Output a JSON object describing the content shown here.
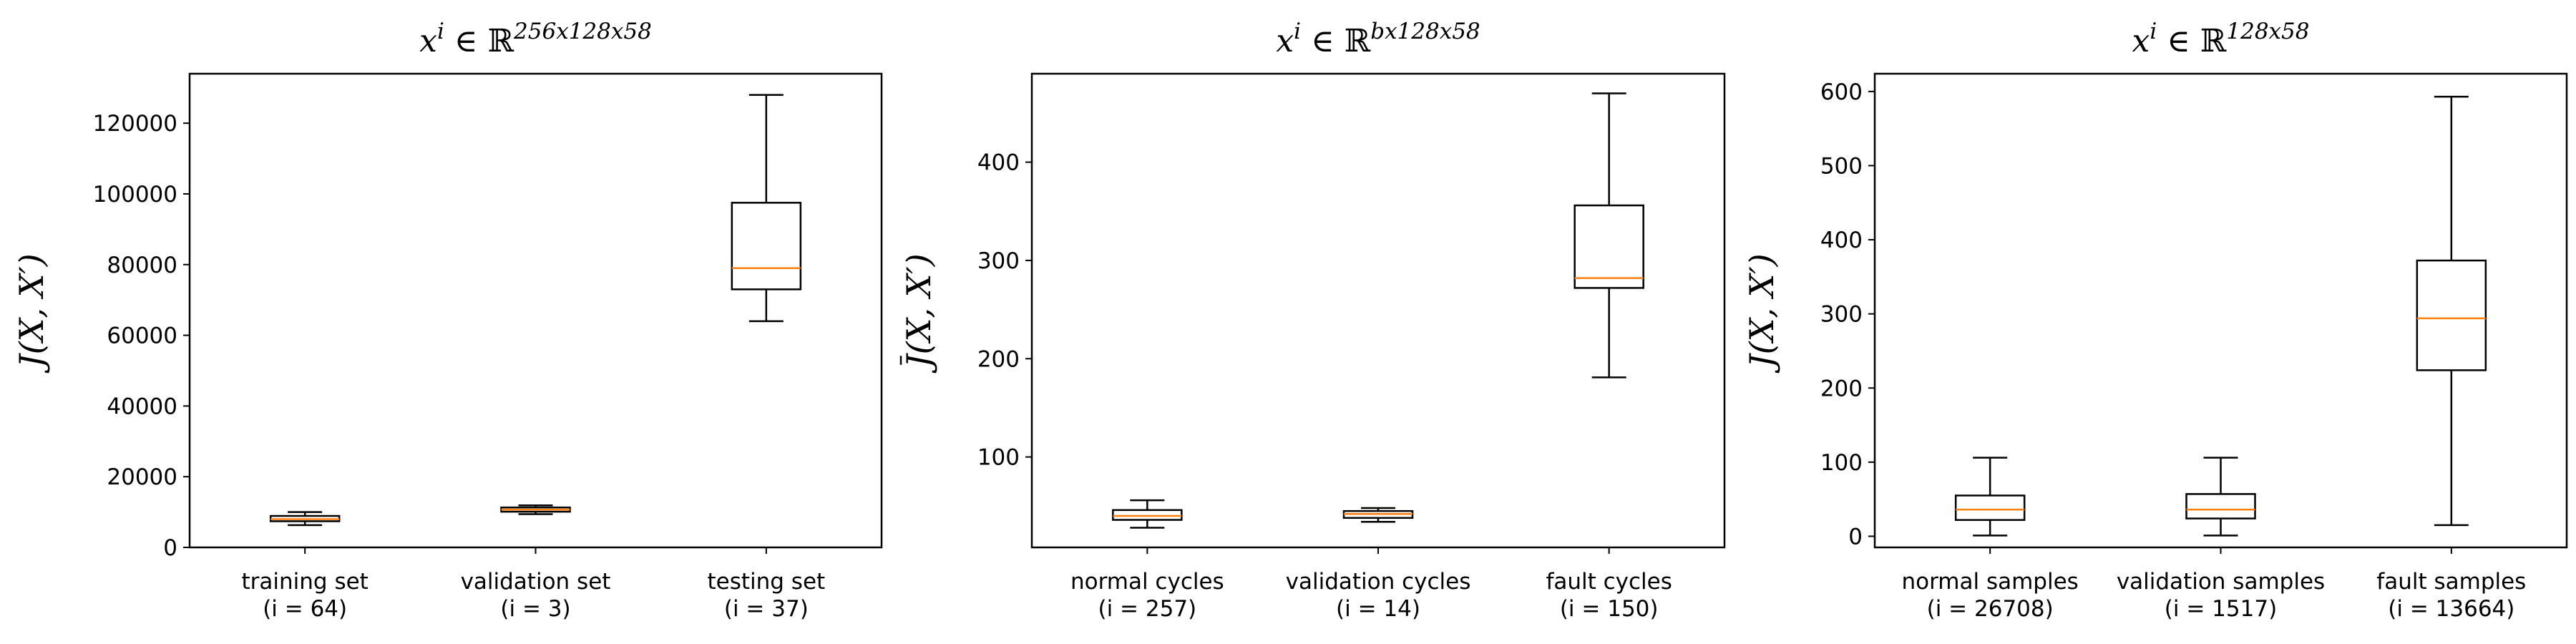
{
  "chart_data": [
    {
      "type": "box",
      "title": {
        "base": "x",
        "sup1": "i",
        "rel": " ∈ ",
        "set": "ℝ",
        "sup2": "256x128x58"
      },
      "ylabel": {
        "main": "J(X, X′)",
        "bar": false
      },
      "ylim": [
        0,
        134000
      ],
      "yticks": [
        0,
        20000,
        40000,
        60000,
        80000,
        100000,
        120000
      ],
      "categories": [
        {
          "label": "training set",
          "sub": "(i = 64)"
        },
        {
          "label": "validation set",
          "sub": "(i = 3)"
        },
        {
          "label": "testing set",
          "sub": "(i = 37)"
        }
      ],
      "boxes": [
        {
          "whislo": 6300,
          "q1": 7400,
          "median": 8000,
          "q3": 8900,
          "whishi": 10000
        },
        {
          "whislo": 9400,
          "q1": 10100,
          "median": 10700,
          "q3": 11300,
          "whishi": 11900
        },
        {
          "whislo": 64000,
          "q1": 73000,
          "median": 79000,
          "q3": 97500,
          "whishi": 128000
        }
      ]
    },
    {
      "type": "box",
      "title": {
        "base": "x",
        "sup1": "i",
        "rel": " ∈ ",
        "set": "ℝ",
        "sup2": "bx128x58"
      },
      "ylabel": {
        "main": "J(X, X′)",
        "bar": true
      },
      "ylim": [
        8,
        490
      ],
      "yticks": [
        100,
        200,
        300,
        400
      ],
      "categories": [
        {
          "label": "normal cycles",
          "sub": "(i = 257)"
        },
        {
          "label": "validation cycles",
          "sub": "(i = 14)"
        },
        {
          "label": "fault cycles",
          "sub": "(i = 150)"
        }
      ],
      "boxes": [
        {
          "whislo": 28,
          "q1": 36,
          "median": 40,
          "q3": 46,
          "whishi": 56
        },
        {
          "whislo": 34,
          "q1": 38,
          "median": 42,
          "q3": 45,
          "whishi": 48
        },
        {
          "whislo": 181,
          "q1": 272,
          "median": 282,
          "q3": 356,
          "whishi": 470
        }
      ]
    },
    {
      "type": "box",
      "title": {
        "base": "x",
        "sup1": "i",
        "rel": " ∈ ",
        "set": "ℝ",
        "sup2": "128x58"
      },
      "ylabel": {
        "main": "J(X, X′)",
        "bar": false
      },
      "ylim": [
        -15,
        624
      ],
      "yticks": [
        0,
        100,
        200,
        300,
        400,
        500,
        600
      ],
      "categories": [
        {
          "label": "normal samples",
          "sub": "(i = 26708)"
        },
        {
          "label": "validation samples",
          "sub": "(i = 1517)"
        },
        {
          "label": "fault samples",
          "sub": "(i = 13664)"
        }
      ],
      "boxes": [
        {
          "whislo": 1,
          "q1": 22,
          "median": 36,
          "q3": 55,
          "whishi": 106
        },
        {
          "whislo": 1,
          "q1": 24,
          "median": 36,
          "q3": 57,
          "whishi": 106
        },
        {
          "whislo": 15,
          "q1": 224,
          "median": 294,
          "q3": 372,
          "whishi": 593
        }
      ]
    }
  ]
}
